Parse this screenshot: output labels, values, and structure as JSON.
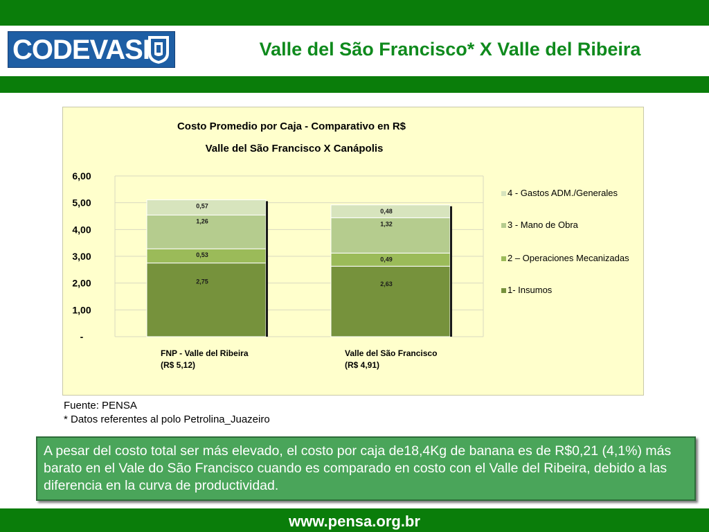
{
  "header": {
    "logo_text": "CODEVASF",
    "title": "Valle del São Francisco* X Valle del Ribeira"
  },
  "colors": {
    "green_bar": "#0a7d0a",
    "title_green": "#0f8a1d",
    "logo_blue": "#1e5ea4",
    "chart_bg": "#ffffcc",
    "note_bg": "#4aa55a"
  },
  "chart_data": {
    "type": "bar",
    "stacked": true,
    "title": "Costo Promedio por Caja - Comparativo en R$",
    "subtitle": "Valle del São Francisco X Canápolis",
    "categories": [
      [
        "FNP - Valle del Ribeira",
        "(R$ 5,12)"
      ],
      [
        "Valle del São Francisco",
        "(R$ 4,91)"
      ]
    ],
    "series": [
      {
        "name": "1- Insumos",
        "values": [
          2.75,
          2.63
        ],
        "labels": [
          "2,75",
          "2,63"
        ],
        "color": "#76923c"
      },
      {
        "name": "2 – Operaciones Mecanizadas",
        "values": [
          0.53,
          0.49
        ],
        "labels": [
          "0,53",
          "0,49"
        ],
        "color": "#9bbb59"
      },
      {
        "name": "3 - Mano de Obra",
        "values": [
          1.26,
          1.32
        ],
        "labels": [
          "1,26",
          "1,32"
        ],
        "color": "#b5cc8e"
      },
      {
        "name": "4 - Gastos ADM./Generales",
        "values": [
          0.57,
          0.48
        ],
        "labels": [
          "0,57",
          "0,48"
        ],
        "color": "#d7e4bd"
      }
    ],
    "legend_order": [
      3,
      2,
      1,
      0
    ],
    "yticks": [
      0,
      1,
      2,
      3,
      4,
      5,
      6
    ],
    "ytick_labels": [
      "-",
      "1,00",
      "2,00",
      "3,00",
      "4,00",
      "5,00",
      "6,00"
    ],
    "ylim": [
      0,
      6
    ],
    "grid": true,
    "legend_position": "right"
  },
  "sources": {
    "line1": "Fuente: PENSA",
    "line2": "* Datos referentes al polo Petrolina_Juazeiro"
  },
  "note": {
    "text": "A pesar del costo total ser más elevado, el costo por caja de18,4Kg de banana es de R$0,21 (4,1%) más barato en el Vale do São Francisco cuando es comparado en costo con el Valle del Ribeira, debido a las diferencia en la curva de productividad."
  },
  "footer": {
    "url": "www.pensa.org.br"
  }
}
